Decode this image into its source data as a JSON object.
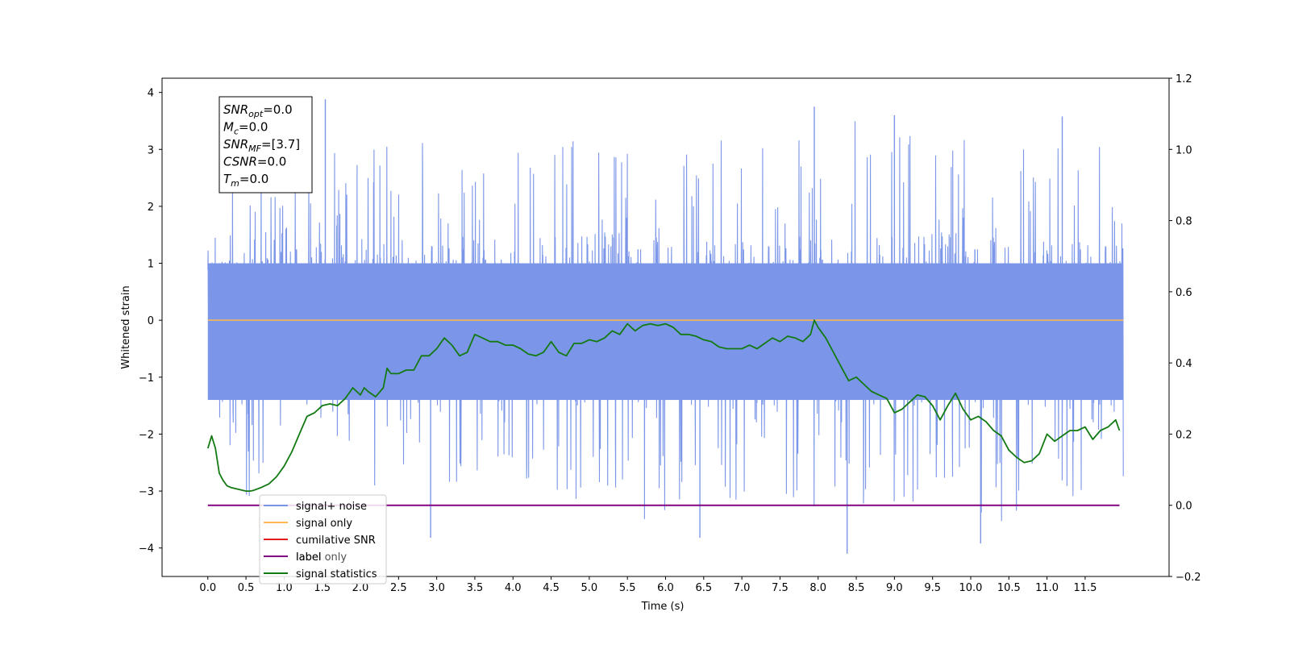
{
  "chart_data": {
    "type": "line",
    "xlabel": "Time (s)",
    "ylabel": "Whitened strain",
    "xlim": [
      -0.6,
      12.6
    ],
    "ylim": [
      -4.5,
      4.25
    ],
    "y2lim": [
      -0.2,
      1.2
    ],
    "x_ticks": [
      "0.0",
      "0.5",
      "1.0",
      "1.5",
      "2.0",
      "2.5",
      "3.0",
      "3.5",
      "4.0",
      "4.5",
      "5.0",
      "5.5",
      "6.0",
      "6.5",
      "7.0",
      "7.5",
      "8.0",
      "8.5",
      "9.0",
      "9.5",
      "10.0",
      "10.5",
      "11.0",
      "11.5"
    ],
    "y_ticks": [
      "4",
      "3",
      "2",
      "1",
      "0",
      "−1",
      "−2",
      "−3",
      "−4"
    ],
    "y2_ticks": [
      "1.2",
      "1.0",
      "0.8",
      "0.6",
      "0.4",
      "0.2",
      "0.0",
      "−0.2"
    ],
    "noise": {
      "x_start": 0.0,
      "x_end": 12.0,
      "center": 0.0,
      "envelope_top": [
        2.3,
        2.6,
        2.9,
        3.0,
        3.1,
        3.3,
        3.0,
        2.7,
        2.9,
        3.2,
        3.1,
        3.0,
        3.3,
        3.2,
        3.2,
        3.3,
        3.4,
        3.5,
        3.4,
        3.0,
        3.3,
        3.2,
        3.0,
        3.2,
        2.8
      ],
      "envelope_bottom": [
        -2.9,
        -3.1,
        -3.2,
        -3.0,
        -3.0,
        -3.1,
        -3.5,
        -3.4,
        -3.7,
        -3.5,
        -3.2,
        -3.6,
        -3.5,
        -3.3,
        -3.5,
        -3.0,
        -3.3,
        -4.0,
        -3.5,
        -3.2,
        -3.3,
        -3.8,
        -3.0,
        -3.4,
        -3.0
      ],
      "spikes": [
        [
          1.54,
          3.88
        ],
        [
          7.95,
          3.75
        ],
        [
          8.38,
          -4.1
        ],
        [
          6.45,
          -3.82
        ],
        [
          10.13,
          -3.92
        ],
        [
          2.92,
          -3.82
        ],
        [
          11.2,
          3.58
        ],
        [
          9.0,
          3.6
        ]
      ]
    },
    "series": [
      {
        "name": "signal+ noise",
        "color": "#7b96e8",
        "axis": "left",
        "values_description_omitted": true
      },
      {
        "name": "signal only",
        "color": "#ffb84d",
        "axis": "left",
        "x": [
          0.0,
          12.0
        ],
        "y": [
          0.0,
          0.0
        ]
      },
      {
        "name": "cumilative SNR",
        "color": "#e31a1c",
        "axis": "right",
        "x": [],
        "y": []
      },
      {
        "name": "label",
        "color": "#800080",
        "axis": "right",
        "x": [
          0.0,
          11.95
        ],
        "y": [
          0.0,
          0.0
        ]
      },
      {
        "name": "signal statistics",
        "color": "#137a13",
        "axis": "right",
        "x": [
          0.0,
          0.05,
          0.1,
          0.15,
          0.2,
          0.25,
          0.3,
          0.4,
          0.5,
          0.55,
          0.6,
          0.7,
          0.8,
          0.9,
          1.0,
          1.1,
          1.2,
          1.3,
          1.4,
          1.5,
          1.6,
          1.7,
          1.8,
          1.9,
          2.0,
          2.05,
          2.1,
          2.2,
          2.3,
          2.35,
          2.4,
          2.5,
          2.6,
          2.7,
          2.8,
          2.9,
          3.0,
          3.1,
          3.2,
          3.3,
          3.4,
          3.5,
          3.6,
          3.7,
          3.8,
          3.9,
          4.0,
          4.1,
          4.2,
          4.3,
          4.4,
          4.5,
          4.6,
          4.7,
          4.8,
          4.9,
          5.0,
          5.1,
          5.2,
          5.3,
          5.4,
          5.5,
          5.6,
          5.7,
          5.8,
          5.9,
          6.0,
          6.1,
          6.2,
          6.3,
          6.4,
          6.5,
          6.6,
          6.7,
          6.8,
          6.9,
          7.0,
          7.1,
          7.2,
          7.3,
          7.4,
          7.5,
          7.6,
          7.7,
          7.8,
          7.9,
          7.95,
          8.0,
          8.1,
          8.2,
          8.3,
          8.4,
          8.5,
          8.6,
          8.7,
          8.8,
          8.9,
          9.0,
          9.1,
          9.2,
          9.3,
          9.4,
          9.5,
          9.6,
          9.7,
          9.8,
          9.9,
          10.0,
          10.1,
          10.2,
          10.3,
          10.4,
          10.5,
          10.6,
          10.7,
          10.8,
          10.9,
          11.0,
          11.1,
          11.2,
          11.3,
          11.4,
          11.5,
          11.6,
          11.7,
          11.8,
          11.9,
          11.95
        ],
        "y": [
          0.16,
          0.195,
          0.16,
          0.09,
          0.07,
          0.055,
          0.05,
          0.045,
          0.04,
          0.04,
          0.042,
          0.05,
          0.06,
          0.08,
          0.11,
          0.15,
          0.2,
          0.25,
          0.26,
          0.28,
          0.285,
          0.28,
          0.3,
          0.33,
          0.31,
          0.33,
          0.32,
          0.305,
          0.33,
          0.385,
          0.37,
          0.37,
          0.38,
          0.38,
          0.42,
          0.42,
          0.44,
          0.47,
          0.45,
          0.42,
          0.43,
          0.48,
          0.47,
          0.46,
          0.46,
          0.45,
          0.45,
          0.44,
          0.425,
          0.42,
          0.43,
          0.46,
          0.43,
          0.42,
          0.455,
          0.455,
          0.465,
          0.46,
          0.47,
          0.49,
          0.48,
          0.51,
          0.49,
          0.505,
          0.51,
          0.505,
          0.51,
          0.5,
          0.48,
          0.48,
          0.475,
          0.465,
          0.46,
          0.445,
          0.44,
          0.44,
          0.44,
          0.45,
          0.44,
          0.455,
          0.47,
          0.46,
          0.475,
          0.47,
          0.46,
          0.48,
          0.52,
          0.5,
          0.47,
          0.43,
          0.39,
          0.35,
          0.36,
          0.34,
          0.32,
          0.31,
          0.3,
          0.26,
          0.27,
          0.29,
          0.31,
          0.305,
          0.28,
          0.24,
          0.28,
          0.315,
          0.27,
          0.24,
          0.25,
          0.235,
          0.21,
          0.195,
          0.155,
          0.135,
          0.12,
          0.125,
          0.145,
          0.2,
          0.18,
          0.195,
          0.21,
          0.21,
          0.22,
          0.185,
          0.21,
          0.22,
          0.24,
          0.21
        ]
      }
    ],
    "legend_placement": "lower-left",
    "annotation_box": {
      "lines": [
        {
          "main": "SNR",
          "sub": "opt",
          "value": "=0.0"
        },
        {
          "main": "M",
          "sub": "c",
          "value": "=0.0"
        },
        {
          "main": "SNR",
          "sub": "MF",
          "value": "=[3.7]"
        },
        {
          "main": "CSNR",
          "sub": "",
          "value": "=0.0"
        },
        {
          "main": "T",
          "sub": "m",
          "value": "=0.0"
        }
      ]
    },
    "legend_overlay_text": "label only"
  }
}
